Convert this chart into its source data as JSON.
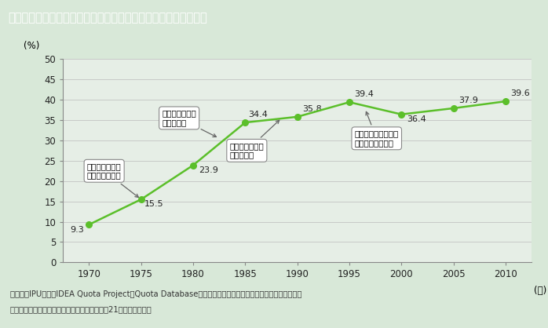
{
  "title": "第１－特－４図　ノルウェーの国会議員に占める女性割合の推移",
  "title_bg_color": "#8C7355",
  "title_text_color": "#FFFFFF",
  "background_color": "#D8E8D8",
  "plot_bg_color": "#E6EEE6",
  "years": [
    1970,
    1975,
    1980,
    1985,
    1990,
    1995,
    2000,
    2005,
    2010
  ],
  "values": [
    9.3,
    15.5,
    23.9,
    34.4,
    35.8,
    39.4,
    36.4,
    37.9,
    39.6
  ],
  "line_color": "#5BBF2A",
  "marker_color": "#5BBF2A",
  "ylim": [
    0,
    50
  ],
  "yticks": [
    0,
    5,
    10,
    15,
    20,
    25,
    30,
    35,
    40,
    45,
    50
  ],
  "xticks": [
    1970,
    1975,
    1980,
    1985,
    1990,
    1995,
    2000,
    2005,
    2010
  ],
  "ylabel": "(%)",
  "xlabel": "(年)",
  "annot1_text": "左派社会党がク\nオータ制を導入",
  "annot2_text": "労働党がクオー\nタ制を導入",
  "annot3_text": "中央党がクオー\nタ制を導入",
  "annot4_text": "キリスト教民主党が\nクオータ制を導入",
  "footnote_line1": "（備考）IPU資料，IDEA Quota Project「Quota Database」，内閣府「諸外国における政策・方針決定過程",
  "footnote_line2": "　　　　への女性の参画に関する調査」（平成21年）より作成。"
}
